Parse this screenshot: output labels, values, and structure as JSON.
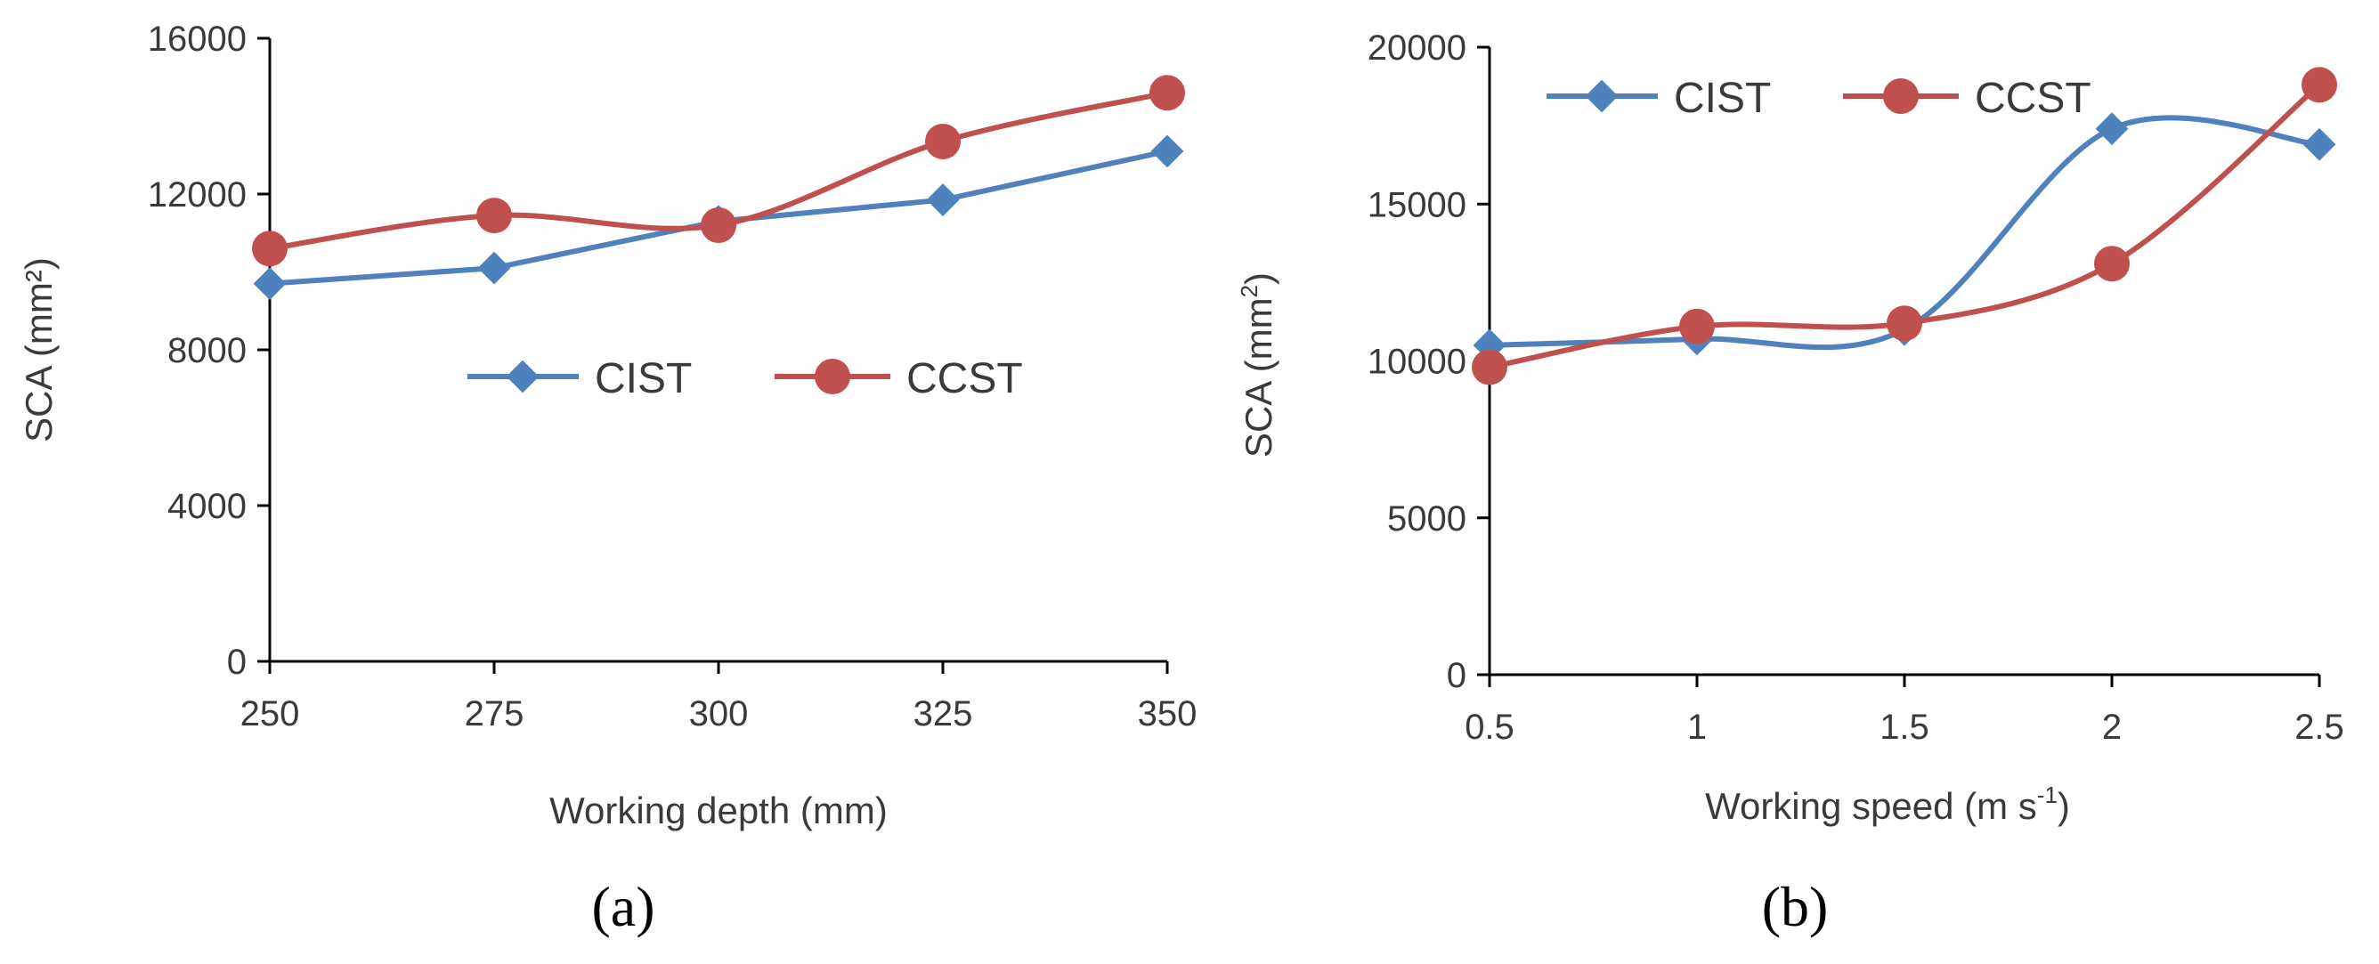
{
  "colors": {
    "cist": "#4f81bd",
    "ccst": "#c0504d",
    "axis": "#000000",
    "text": "#3a3a3a"
  },
  "chart_data": [
    {
      "type": "line",
      "panel_label": "(a)",
      "xlabel": "Working depth (mm)",
      "ylabel": "SCA (mm²)",
      "categories": [
        "250",
        "275",
        "300",
        "325",
        "350"
      ],
      "ylim": [
        0,
        16000
      ],
      "yticks": [
        "0",
        "4000",
        "8000",
        "12000",
        "16000"
      ],
      "legend_position": "center",
      "series": [
        {
          "name": "CIST",
          "marker": "diamond",
          "smooth": false,
          "values": [
            9700,
            10100,
            11300,
            11850,
            13100
          ]
        },
        {
          "name": "CCST",
          "marker": "circle",
          "smooth": true,
          "values": [
            10600,
            11450,
            11200,
            13350,
            14600
          ]
        }
      ]
    },
    {
      "type": "line",
      "panel_label": "(b)",
      "xlabel_main": "Working speed (m s",
      "xlabel_sup": "-1",
      "xlabel_end": ")",
      "ylabel_main": "SCA (mm",
      "ylabel_sup": "2",
      "ylabel_end": ")",
      "categories": [
        "0.5",
        "1",
        "1.5",
        "2",
        "2.5"
      ],
      "ylim": [
        0,
        20000
      ],
      "yticks": [
        "0",
        "5000",
        "10000",
        "15000",
        "20000"
      ],
      "legend_position": "top-left",
      "series": [
        {
          "name": "CIST",
          "marker": "diamond",
          "smooth": true,
          "values": [
            10500,
            10700,
            11000,
            17400,
            16900
          ]
        },
        {
          "name": "CCST",
          "marker": "circle",
          "smooth": true,
          "values": [
            9800,
            11100,
            11200,
            13100,
            18800
          ]
        }
      ]
    }
  ]
}
